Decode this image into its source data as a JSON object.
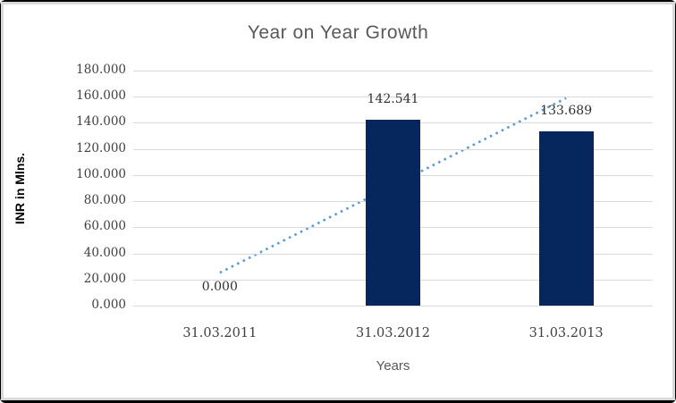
{
  "window": {
    "background": "#000000",
    "frame_border_color": "#D9D9D9",
    "canvas_color": "#FFFFFF"
  },
  "chart_data": {
    "type": "bar",
    "title": "Year on Year Growth",
    "xlabel": "Years",
    "ylabel": "INR in Mlns.",
    "categories": [
      "31.03.2011",
      "31.03.2012",
      "31.03.2013"
    ],
    "values": [
      0,
      142.541,
      133.689
    ],
    "data_labels": [
      "0.000",
      "142.541",
      "133.689"
    ],
    "ylim": [
      0,
      180
    ],
    "ytick_step": 20,
    "ytick_labels": [
      "180.000",
      "160.000",
      "140.000",
      "120.000",
      "100.000",
      "80.000",
      "60.000",
      "40.000",
      "20.000",
      "0.000"
    ],
    "grid": true,
    "legend": false,
    "bar_color": "#06265E",
    "gridline_color": "#D9D9D9",
    "title_color": "#595959",
    "tick_label_color": "#3f3f3f",
    "trendline": {
      "type": "linear",
      "style": "dotted",
      "color": "#5B9BD5",
      "start_value": 25.2,
      "end_value": 158.9
    }
  }
}
